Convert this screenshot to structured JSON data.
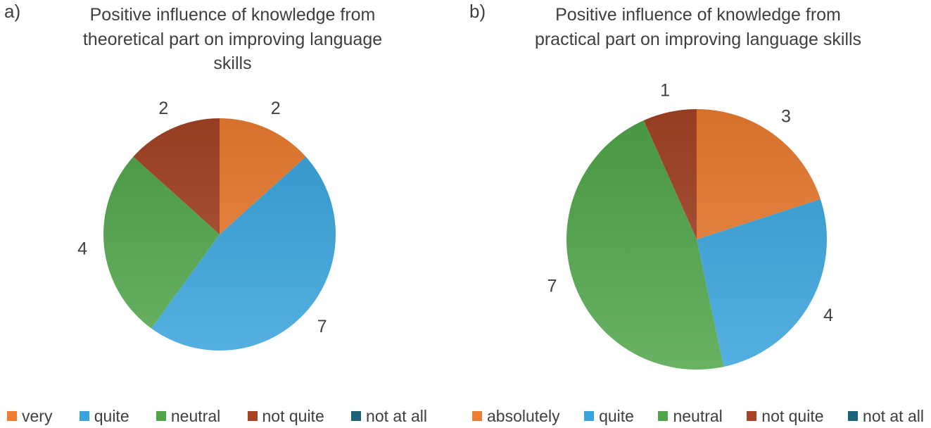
{
  "background": "#ffffff",
  "text_color": "#3f3f3f",
  "chart_data": [
    {
      "type": "pie",
      "panel_label": "a)",
      "title": "Positive influence of knowledge from theoretical part on improving language skills",
      "title_lines": [
        "Positive influence of knowledge from",
        "theoretical part on improving language",
        "skills"
      ],
      "categories": [
        "very",
        "quite",
        "neutral",
        "not quite",
        "not at all"
      ],
      "values": [
        2,
        7,
        4,
        2,
        0
      ],
      "total": 15,
      "colors": [
        "#ED7D31",
        "#38A3DC",
        "#4FA64A",
        "#A64425",
        "#1C6378"
      ],
      "data_labels": "values-outside",
      "legend_position": "bottom",
      "start_angle_deg": 0,
      "direction": "clockwise"
    },
    {
      "type": "pie",
      "panel_label": "b)",
      "title": "Positive influence of knowledge from practical part on improving language skills",
      "title_lines": [
        "Positive influence of knowledge from",
        "practical part on improving language skills"
      ],
      "categories": [
        "absolutely",
        "quite",
        "neutral",
        "not quite",
        "not at all"
      ],
      "values": [
        3,
        4,
        7,
        1,
        0
      ],
      "total": 15,
      "colors": [
        "#ED7D31",
        "#38A3DC",
        "#4FA64A",
        "#A64425",
        "#1C6378"
      ],
      "data_labels": "values-outside",
      "legend_position": "bottom",
      "start_angle_deg": 0,
      "direction": "clockwise"
    }
  ]
}
